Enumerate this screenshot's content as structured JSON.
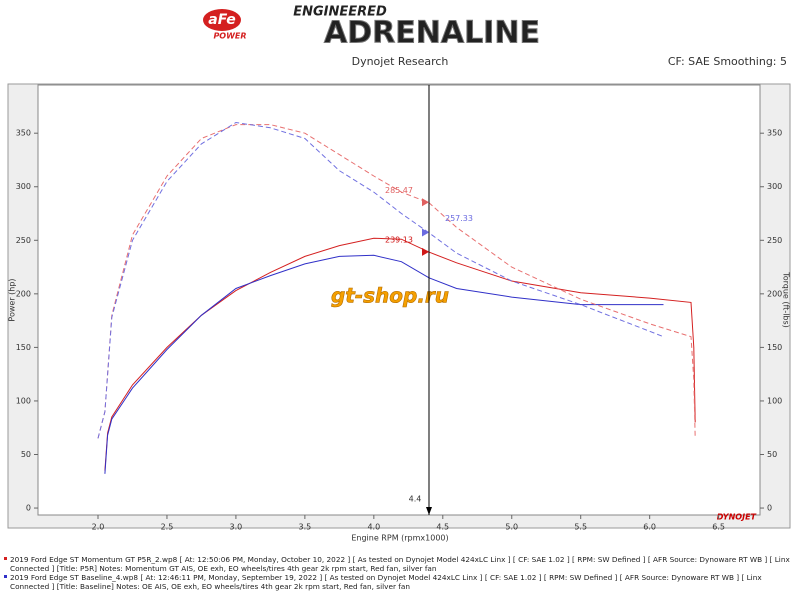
{
  "header": {
    "brand": "aFe",
    "brand_sub": "POWER",
    "tagline": "ENGINEERED",
    "title": "ADRENALINE"
  },
  "chart_data": {
    "type": "line",
    "title": "Dynojet Research",
    "subtitle": "CF: SAE Smoothing: 5",
    "x_label": "Engine RPM (rpmx1000)",
    "y_label": "Power (hp)",
    "y2_label": "Torque (ft-lbs)",
    "xlim": [
      1.565,
      6.8
    ],
    "ylim": [
      -6.5,
      395
    ],
    "y2lim": [
      -6.5,
      395
    ],
    "xticks": [
      {
        "value": 2,
        "label": "2.0"
      },
      2.5,
      {
        "value": 3,
        "label": "3.0"
      },
      3.5,
      {
        "value": 4,
        "label": "4.0"
      },
      4.5,
      {
        "value": 5,
        "label": "5.0"
      },
      5.5,
      {
        "value": 6,
        "label": "6.0"
      },
      6.5
    ],
    "yticks": [
      0,
      50,
      100,
      150,
      200,
      250,
      300,
      350
    ],
    "y2ticks": [
      0,
      50,
      100,
      150,
      200,
      250,
      300,
      350
    ],
    "cursor_x": 4.4,
    "annotations": [
      {
        "value": 285.47,
        "color": "#e06060"
      },
      {
        "value": 257.33,
        "color": "#6a6ae0"
      },
      {
        "value": 239.13,
        "color": "#d01818"
      }
    ],
    "watermark": "gt-shop.ru",
    "maker": "DYNOJET",
    "series": [
      {
        "color": "#d42020",
        "dash": false,
        "axis": "y",
        "x": [
          2.05,
          2.07,
          2.1,
          2.25,
          2.5,
          2.75,
          3.0,
          3.25,
          3.5,
          3.75,
          4.0,
          4.2,
          4.4,
          4.6,
          5.0,
          5.5,
          6.0,
          6.3,
          6.32,
          6.33
        ],
        "values": [
          35,
          70,
          85,
          115,
          150,
          180,
          203,
          220,
          235,
          245,
          252,
          251,
          239,
          229,
          212,
          201,
          196,
          192,
          150,
          80
        ]
      },
      {
        "color": "#3030c8",
        "dash": false,
        "axis": "y",
        "x": [
          2.05,
          2.07,
          2.1,
          2.25,
          2.5,
          2.75,
          3.0,
          3.25,
          3.5,
          3.75,
          4.0,
          4.2,
          4.4,
          4.6,
          5.0,
          5.5,
          6.0,
          6.1
        ],
        "values": [
          32,
          68,
          83,
          112,
          148,
          180,
          205,
          217,
          228,
          235,
          236,
          230,
          215,
          205,
          197,
          190,
          190,
          190
        ]
      },
      {
        "color": "#e87070",
        "dash": true,
        "axis": "y2",
        "x": [
          2.0,
          2.05,
          2.1,
          2.25,
          2.5,
          2.75,
          3.0,
          3.25,
          3.5,
          3.75,
          4.0,
          4.2,
          4.4,
          4.6,
          5.0,
          5.5,
          6.0,
          6.3,
          6.32,
          6.33
        ],
        "values": [
          65,
          90,
          180,
          255,
          310,
          345,
          358,
          358,
          350,
          330,
          310,
          295,
          285,
          262,
          225,
          195,
          172,
          160,
          120,
          65
        ]
      },
      {
        "color": "#7070e0",
        "dash": true,
        "axis": "y2",
        "x": [
          2.0,
          2.05,
          2.1,
          2.25,
          2.5,
          2.75,
          3.0,
          3.25,
          3.5,
          3.75,
          4.0,
          4.2,
          4.4,
          4.6,
          5.0,
          5.5,
          6.0,
          6.1
        ],
        "values": [
          65,
          90,
          178,
          250,
          305,
          340,
          360,
          355,
          345,
          315,
          295,
          275,
          257,
          238,
          212,
          190,
          165,
          160
        ]
      }
    ],
    "legend": [
      {
        "text": "2019 Ford Edge ST Momentum GT P5R_2.wp8 [ At: 12:50:06 PM, Monday, October 10, 2022 ] [ As tested on Dynojet Model 424xLC Linx ] [ CF: SAE 1.02 ] [ RPM: SW Defined ] [ AFR Source: Dynoware RT WB ] [ Linx Connected ] [Title: P5R]  Notes: Momentum GT AIS, OE exh, EO wheels/tires  4th gear 2k rpm start, Red fan, silver fan",
        "color": "#d42020"
      },
      {
        "text": "2019 Ford Edge ST Baseline_4.wp8 [ At: 12:46:11 PM, Monday, September 19, 2022 ] [ As tested on Dynojet Model 424xLC Linx ] [ CF: SAE 1.02 ] [ RPM: SW Defined ] [ AFR Source: Dynoware RT WB ] [ Linx Connected ] [Title: Baseline]  Notes: OE AIS, OE exh, EO wheels/tires  4th gear 2k rpm start, Red fan, silver fan",
        "color": "#3030c8"
      }
    ]
  }
}
